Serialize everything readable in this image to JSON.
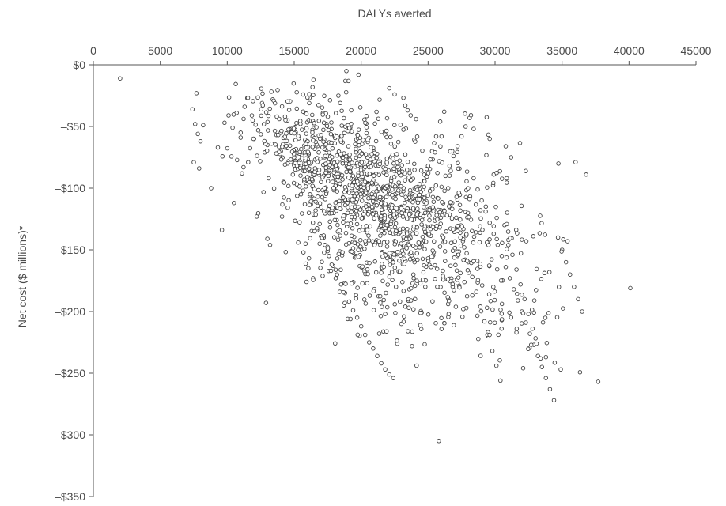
{
  "chart_data": {
    "type": "scatter",
    "xlabel": "DALYs averted",
    "ylabel": "Net cost ($ millions)*",
    "xlim": [
      0,
      45000
    ],
    "ylim": [
      -350,
      0
    ],
    "x_ticks": [
      0,
      5000,
      10000,
      15000,
      20000,
      25000,
      30000,
      35000,
      40000,
      45000
    ],
    "y_ticks": [
      0,
      -50,
      -100,
      -150,
      -200,
      -250,
      -300,
      -350
    ],
    "y_tick_labels": [
      "$0",
      "–$50",
      "–$100",
      "–$150",
      "–$200",
      "–$250",
      "–$300",
      "–$350"
    ],
    "x_axis_position": "top",
    "grid": false,
    "marker": "open-circle",
    "series": [
      {
        "x": [
          2000,
          7400,
          7700,
          7600,
          7900,
          8200,
          7800,
          8000,
          7500,
          9600,
          9800,
          10100,
          10400,
          10700,
          11000,
          11300,
          11500,
          11900,
          12200,
          12600,
          11100,
          10500,
          9300,
          8800,
          12900,
          13200,
          13000,
          13100,
          12800,
          13400,
          13700,
          14000,
          14300,
          14600,
          14900,
          15200,
          15500,
          15800,
          16100,
          16400,
          16700,
          17000,
          17300,
          17600,
          17900,
          18200,
          18500,
          18800,
          19100,
          19400,
          19700,
          20000,
          20300,
          20600,
          20900,
          21200,
          21500,
          21800,
          22100,
          22400,
          22700,
          23000,
          23300,
          23600,
          23900,
          24200,
          24500,
          24800,
          25100,
          25400,
          25700,
          26000,
          26300,
          26600,
          26900,
          27200,
          27500,
          27800,
          28100,
          28400,
          28700,
          29000,
          29300,
          29600,
          29900,
          30200,
          30500,
          30800,
          31100,
          31400,
          31700,
          32000,
          32300,
          32600,
          32900,
          33200,
          33500,
          33800,
          34100,
          34400,
          34700,
          35000,
          35300,
          35600,
          35900,
          36200,
          36500,
          36800,
          37700,
          40100,
          14500,
          14800,
          15100,
          15400,
          15700,
          16000,
          16300,
          16600,
          16900,
          17200,
          17500,
          17800,
          18100,
          18400,
          18700,
          19000,
          19300,
          19600,
          19900,
          20200,
          20500,
          20800,
          21100,
          21400,
          21700,
          22000,
          22300,
          22600,
          22900,
          23200,
          23500,
          23800,
          24100,
          24400,
          24700,
          25000,
          25300,
          25600,
          25900,
          26200,
          26500,
          26800,
          27100,
          27400,
          27700,
          28000,
          28300,
          28600,
          28900,
          29200,
          29500,
          29800,
          30100,
          30400,
          30700,
          31000,
          31300,
          31600,
          31900,
          32200,
          32500,
          32800,
          33100,
          33400,
          15100,
          16200,
          17300,
          18400,
          19500,
          20600,
          21700,
          22800,
          23900,
          25000,
          26100,
          27200,
          28300,
          29400,
          30500,
          31600,
          32700,
          33800,
          34900,
          18900,
          19800,
          22100,
          22500,
          23300,
          23700,
          24100,
          26000,
          26800,
          28400,
          29600,
          30800,
          31200,
          32300,
          25800,
          20000,
          22000,
          23000,
          24000,
          21000,
          19000,
          18000,
          17000,
          16000,
          15000,
          14000,
          13000,
          12000,
          11000
        ],
        "y": [
          -11,
          -36,
          -23,
          -48,
          -84,
          -49,
          -56,
          -62,
          -79,
          -134,
          -47,
          -41,
          -51,
          -39,
          -59,
          -34,
          -27,
          -45,
          -123,
          -31,
          -88,
          -112,
          -67,
          -100,
          -193,
          -146,
          -141,
          -92,
          -71,
          -28,
          -42,
          -55,
          -67,
          -78,
          -89,
          -97,
          -105,
          -113,
          -120,
          -128,
          -134,
          -139,
          -146,
          -155,
          -163,
          -170,
          -178,
          -185,
          -192,
          -199,
          -205,
          -212,
          -219,
          -225,
          -230,
          -236,
          -242,
          -247,
          -251,
          -254,
          -226,
          -210,
          -196,
          -182,
          -170,
          -158,
          -147,
          -136,
          -126,
          -117,
          -108,
          -99,
          -90,
          -82,
          -74,
          -66,
          -58,
          -50,
          -43,
          -92,
          -101,
          -110,
          -119,
          -128,
          -137,
          -146,
          -155,
          -164,
          -173,
          -182,
          -191,
          -200,
          -209,
          -218,
          -227,
          -236,
          -245,
          -254,
          -263,
          -272,
          -140,
          -150,
          -160,
          -170,
          -180,
          -190,
          -200,
          -89,
          -257,
          -181,
          -45,
          -52,
          -61,
          -72,
          -83,
          -94,
          -107,
          -118,
          -129,
          -140,
          -151,
          -162,
          -173,
          -184,
          -195,
          -206,
          -54,
          -64,
          -74,
          -84,
          -96,
          -108,
          -120,
          -132,
          -144,
          -156,
          -168,
          -180,
          -192,
          -204,
          -216,
          -228,
          -118,
          -106,
          -94,
          -82,
          -70,
          -58,
          -46,
          -38,
          -100,
          -112,
          -124,
          -136,
          -148,
          -160,
          -172,
          -184,
          -196,
          -208,
          -220,
          -232,
          -244,
          -256,
          -130,
          -142,
          -154,
          -166,
          -178,
          -190,
          -202,
          -214,
          -226,
          -238,
          -73,
          -80,
          -88,
          -97,
          -107,
          -117,
          -127,
          -137,
          -147,
          -157,
          -167,
          -177,
          -187,
          -197,
          -207,
          -217,
          -227,
          -237,
          -247,
          -5,
          -8,
          -19,
          -24,
          -33,
          -41,
          -44,
          -58,
          -70,
          -52,
          -60,
          -66,
          -75,
          -86,
          -305,
          -150,
          -130,
          -115,
          -100,
          -110,
          -120,
          -90,
          -95,
          -85,
          -75,
          -70,
          -65,
          -60,
          -55
        ]
      }
    ]
  }
}
